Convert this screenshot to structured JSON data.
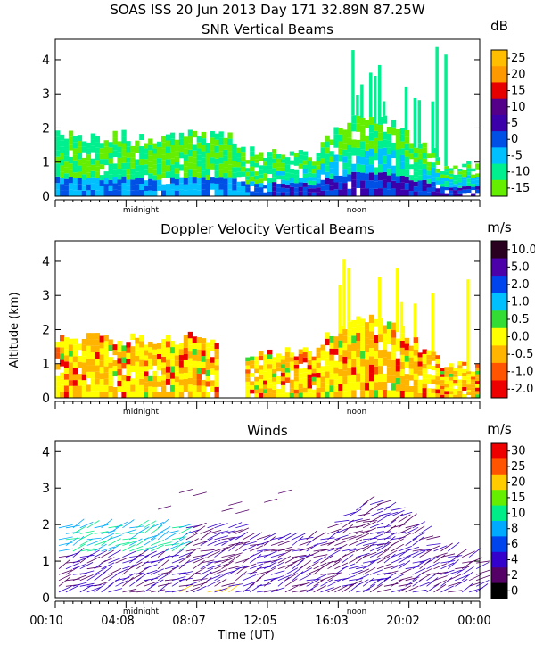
{
  "header": "SOAS ISS  20 Jun 2013 Day 171 32.89N  87.25W",
  "shared_ylabel": "Altitude (km)",
  "chart_data": [
    {
      "type": "heatmap",
      "title": "SNR Vertical Beams",
      "units": "dB",
      "ylim": [
        0,
        4.6
      ],
      "yticks": [
        "0",
        "1",
        "2",
        "3",
        "4"
      ],
      "xlabels": [
        "midnight",
        "noon"
      ],
      "colorbar": {
        "labels": [
          "25",
          "20",
          "15",
          "10",
          "5",
          "0",
          "-5",
          "-10",
          "-15"
        ],
        "colors": [
          "#ffbf00",
          "#ff9900",
          "#e60000",
          "#550088",
          "#3c00aa",
          "#0050e6",
          "#00c0ff",
          "#00f090",
          "#66ee00"
        ]
      }
    },
    {
      "type": "heatmap",
      "title": "Doppler Velocity Vertical Beams",
      "units": "m/s",
      "ylim": [
        0,
        4.6
      ],
      "yticks": [
        "0",
        "1",
        "2",
        "3",
        "4"
      ],
      "xlabels": [
        "midnight",
        "noon"
      ],
      "colorbar": {
        "labels": [
          "10.0",
          "5.0",
          "2.0",
          "1.0",
          "0.5",
          "0.0",
          "-0.5",
          "-1.0",
          "-2.0"
        ],
        "colors": [
          "#2a0020",
          "#4c00aa",
          "#0044ee",
          "#00c0ff",
          "#33dd33",
          "#ffff00",
          "#ffb400",
          "#ff5500",
          "#ee0000"
        ]
      }
    },
    {
      "type": "scatter",
      "title": "Winds",
      "units": "m/s",
      "xlabel": "Time (UT)",
      "ylim": [
        0,
        4.3
      ],
      "yticks": [
        "0",
        "1",
        "2",
        "3",
        "4"
      ],
      "xticks": [
        "00:10",
        "04:08",
        "08:07",
        "12:05",
        "16:03",
        "20:02",
        "00:00"
      ],
      "xlabels": [
        "midnight",
        "noon"
      ],
      "colorbar": {
        "labels": [
          "30",
          "25",
          "20",
          "15",
          "10",
          "8",
          "6",
          "4",
          "2",
          "0"
        ],
        "colors": [
          "#ee0000",
          "#ff5500",
          "#ffcc00",
          "#66ee00",
          "#00ee88",
          "#00aaff",
          "#0044ee",
          "#3300cc",
          "#550066",
          "#000000"
        ]
      }
    }
  ]
}
